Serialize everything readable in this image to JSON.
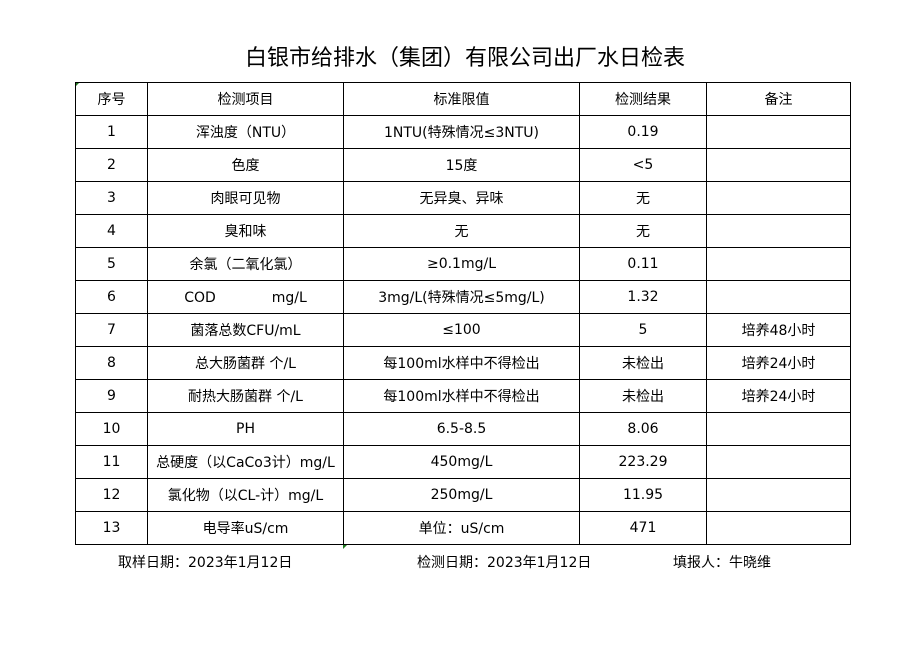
{
  "title": "白银市给排水（集团）有限公司出厂水日检表",
  "headers": [
    "序号",
    "检测项目",
    "标准限值",
    "检测结果",
    "备注"
  ],
  "rows": [
    [
      "1",
      "浑浊度（NTU）",
      "1NTU(特殊情况≤3NTU)",
      "0.19",
      ""
    ],
    [
      "2",
      "色度",
      "15度",
      "<5",
      ""
    ],
    [
      "3",
      "肉眼可见物",
      "无异臭、异味",
      "无",
      ""
    ],
    [
      "4",
      "臭和味",
      "无",
      "无",
      ""
    ],
    [
      "5",
      "余氯（二氧化氯）",
      "≥0.1mg/L",
      "0.11",
      ""
    ],
    [
      "6",
      "COD　　　　mg/L",
      "3mg/L(特殊情况≤5mg/L)",
      "1.32",
      ""
    ],
    [
      "7",
      "菌落总数CFU/mL",
      "≤100",
      "5",
      "培养48小时"
    ],
    [
      "8",
      "总大肠菌群 个/L",
      "每100ml水样中不得检出",
      "未检出",
      "培养24小时"
    ],
    [
      "9",
      "耐热大肠菌群 个/L",
      "每100ml水样中不得检出",
      "未检出",
      "培养24小时"
    ],
    [
      "10",
      "PH",
      "6.5-8.5",
      "8.06",
      ""
    ],
    [
      "11",
      "总硬度（以CaCo3计）mg/L",
      "450mg/L",
      "223.29",
      ""
    ],
    [
      "12",
      "氯化物（以CL-计）mg/L",
      "250mg/L",
      "11.95",
      ""
    ],
    [
      "13",
      "电导率uS/cm",
      "单位：uS/cm",
      "471",
      ""
    ]
  ],
  "footer": {
    "sampling_date": "取样日期：2023年1月12日",
    "test_date": "检测日期：2023年1月12日",
    "reporter": "填报人：牛晓维"
  }
}
